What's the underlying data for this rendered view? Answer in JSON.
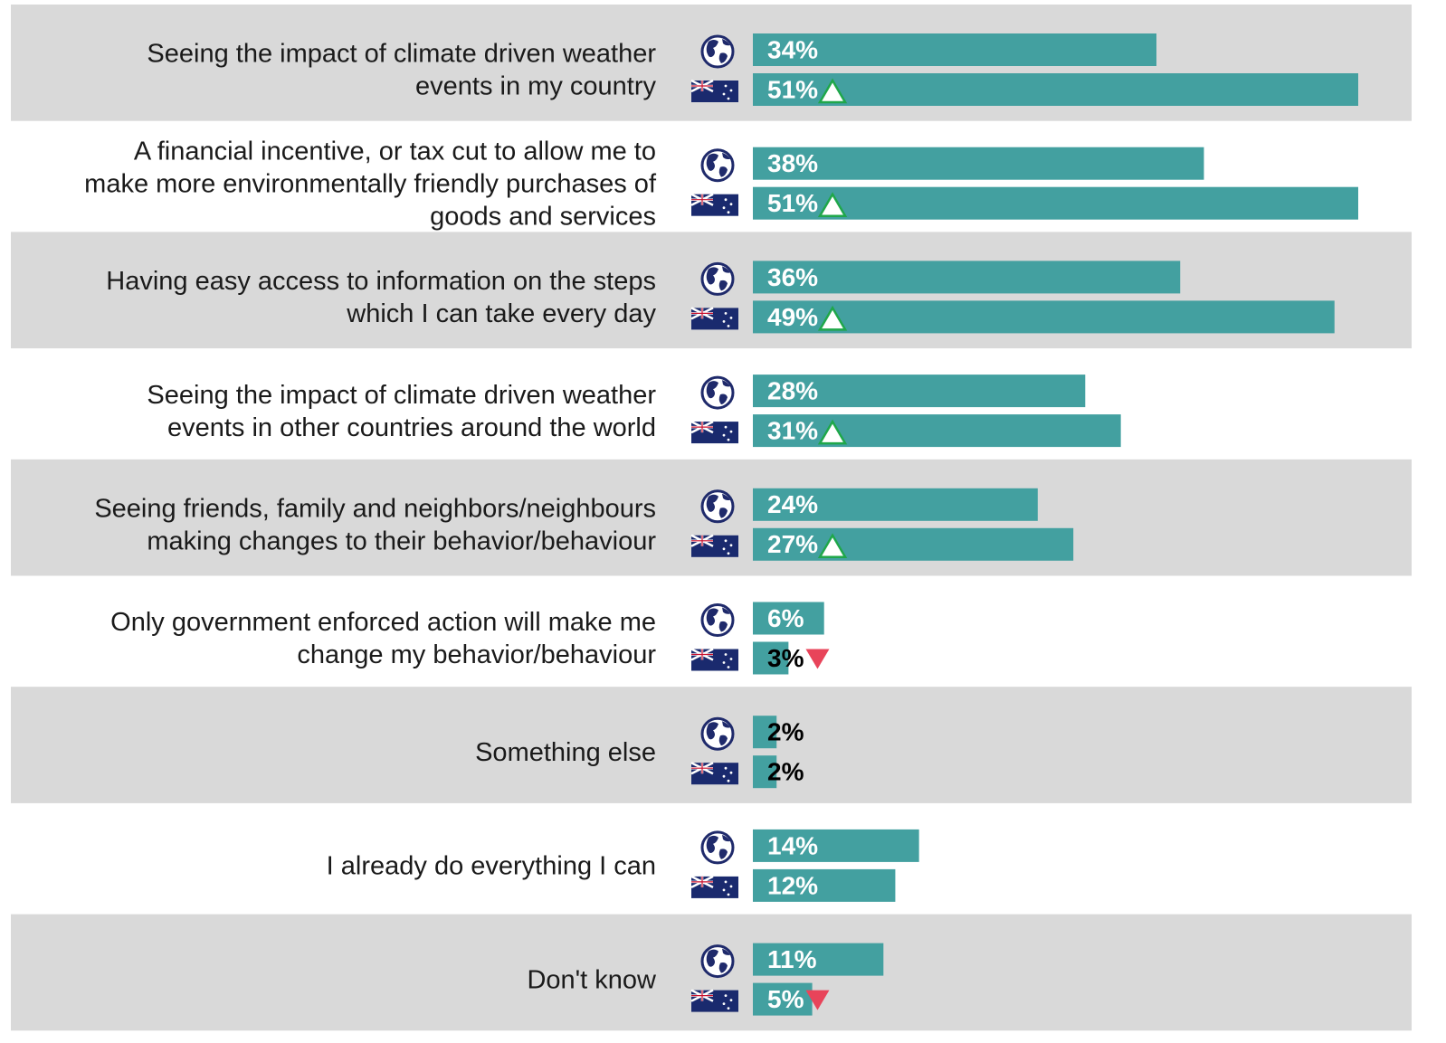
{
  "chart_data": {
    "type": "bar",
    "orientation": "horizontal",
    "categories": [
      [
        "Seeing the impact of climate driven weather",
        "events in my country"
      ],
      [
        "A financial incentive, or tax cut to allow me to",
        "make more environmentally friendly purchases of",
        "goods and services"
      ],
      [
        "Having easy access to information on the steps",
        "which I can take every day"
      ],
      [
        "Seeing the impact of climate driven weather",
        "events in other countries around the world"
      ],
      [
        "Seeing friends, family and neighbors/neighbours",
        "making changes to their behavior/behaviour"
      ],
      [
        "Only government enforced action will make me",
        "change my behavior/behaviour"
      ],
      [
        "Something else"
      ],
      [
        "I already do everything I can"
      ],
      [
        "Don't know"
      ]
    ],
    "series": [
      {
        "color": "#43a0a0",
        "icon": "globe",
        "values": [
          34,
          38,
          36,
          28,
          24,
          6,
          2,
          14,
          11
        ],
        "value_labels": [
          "34%",
          "38%",
          "36%",
          "28%",
          "24%",
          "6%",
          "2%",
          "14%",
          "11%"
        ]
      },
      {
        "color": "#43a0a0",
        "icon": "flag",
        "values": [
          51,
          51,
          49,
          31,
          27,
          3,
          2,
          12,
          5
        ],
        "value_labels": [
          "51%",
          "51%",
          "49%",
          "31%",
          "27%",
          "3%",
          "2%",
          "12%",
          "5%"
        ],
        "significance": [
          "up",
          "up",
          "up",
          "up",
          "up",
          "down",
          null,
          null,
          "down"
        ]
      }
    ],
    "xlim": [
      0,
      51
    ],
    "row_shading": "#d9d9d9"
  }
}
